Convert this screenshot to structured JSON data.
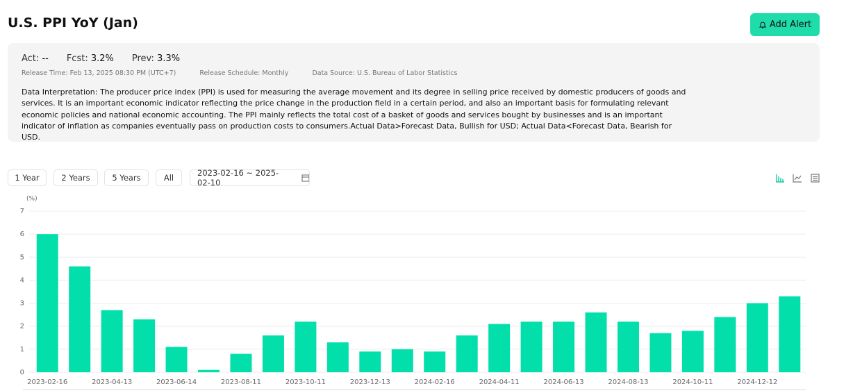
{
  "page": {
    "title": "U.S. PPI YoY (Jan)",
    "alert_button": "Add Alert",
    "stats": [
      {
        "label": "Act:",
        "value": "--"
      },
      {
        "label": "Fcst:",
        "value": "3.2%"
      },
      {
        "label": "Prev:",
        "value": "3.3%"
      }
    ],
    "meta": [
      "Release Time: Feb 13, 2025 08:30 PM (UTC+7)",
      "Release Schedule: Monthly",
      "Data Source: U.S. Bureau of Labor Statistics"
    ],
    "interpretation": "Data Interpretation: The producer price index (PPI) is used for measuring the average movement and its degree in selling price received by domestic producers of goods and services. It is an important economic indicator reflecting the price change in the production field in a certain period, and also an important basis for formulating relevant economic policies and national economic accounting. The PPI mainly reflects the total cost of a basket of goods and services bought by businesses and is an important indicator of inflation as companies eventually pass on production costs to consumers.Actual Data>Forecast Data, Bullish for USD; Actual Data<Forecast Data, Bearish for USD.",
    "range_buttons": [
      "1 Year",
      "2 Years",
      "5 Years",
      "All"
    ],
    "date_range": "2023-02-16 ~ 2025-02-10"
  },
  "chart_data": {
    "type": "bar",
    "y_label": "(%)",
    "categories": [
      "2023-02-16",
      null,
      "2023-04-13",
      null,
      "2023-06-14",
      null,
      "2023-08-11",
      null,
      "2023-10-11",
      null,
      "2023-12-13",
      null,
      "2024-02-16",
      null,
      "2024-04-11",
      null,
      "2024-06-13",
      null,
      "2024-08-13",
      null,
      "2024-10-11",
      null,
      "2024-12-12",
      null
    ],
    "values": [
      6.0,
      4.6,
      2.7,
      2.3,
      1.1,
      0.1,
      0.8,
      1.6,
      2.2,
      1.3,
      0.9,
      1.0,
      0.9,
      1.6,
      2.1,
      2.2,
      2.2,
      2.6,
      2.2,
      1.7,
      1.8,
      2.4,
      3.0,
      3.3
    ],
    "color": "#03dfab",
    "ylim": [
      0,
      7
    ],
    "yticks": [
      0,
      1,
      2,
      3,
      4,
      5,
      6,
      7
    ],
    "grid": true
  }
}
